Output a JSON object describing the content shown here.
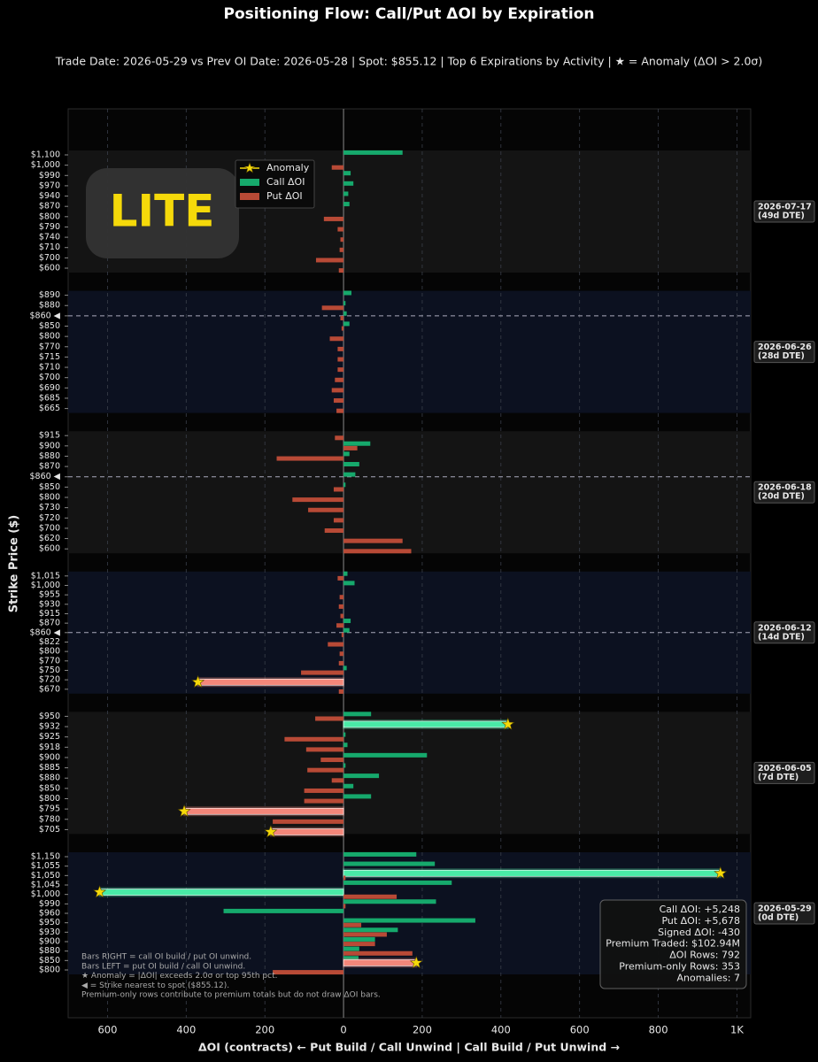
{
  "chart_data": {
    "type": "diverging-bar",
    "title": "Positioning Flow: Call/Put ΔOI by Expiration",
    "subtitle": "Trade Date: 2026-05-29 vs Prev OI Date: 2026-05-28  |  Spot: $855.12  |  Top 6 Expirations by Activity  |  ★ = Anomaly (ΔOI > 2.0σ)",
    "ticker": "LITE",
    "xlabel": "ΔOI (contracts)  ← Put Build / Call Unwind  |  Call Build / Put Unwind →",
    "ylabel": "Strike Price ($)",
    "xlim": [
      -700,
      1035
    ],
    "xticks": [
      {
        "value": -600,
        "label": "600"
      },
      {
        "value": -400,
        "label": "400"
      },
      {
        "value": -200,
        "label": "200"
      },
      0,
      200,
      400,
      600,
      800,
      {
        "value": 1000,
        "label": "1K"
      }
    ],
    "grid": true,
    "legend": {
      "position": "upper left",
      "anomaly_label": "Anomaly",
      "anomaly_color": "#f5d90a"
    },
    "series": [
      {
        "name": "Call ΔOI",
        "color": "#16a96c",
        "anomaly_color": "#49eaa6"
      },
      {
        "name": "Put ΔOI",
        "color": "#b84a36",
        "anomaly_color": "#f3877a"
      }
    ],
    "groups": [
      {
        "expiration": "2026-07-17",
        "dte": "(49d DTE)",
        "spot_index": null,
        "strikes": [
          "$1,100",
          "$1,000",
          "$990",
          "$970",
          "$940",
          "$870",
          "$800",
          "$790",
          "$740",
          "$710",
          "$700",
          "$600"
        ],
        "call": [
          150,
          null,
          18,
          25,
          12,
          15,
          null,
          null,
          null,
          null,
          null,
          null
        ],
        "put": [
          null,
          -30,
          null,
          null,
          null,
          null,
          -50,
          -15,
          -8,
          -10,
          -70,
          -12
        ],
        "anomalies": []
      },
      {
        "expiration": "2026-06-26",
        "dte": "(28d DTE)",
        "spot_index": 2,
        "strikes": [
          "$890",
          "$880",
          "$860 ◀",
          "$850",
          "$800",
          "$770",
          "$715",
          "$710",
          "$700",
          "$690",
          "$685",
          "$665"
        ],
        "call": [
          20,
          5,
          8,
          15,
          null,
          null,
          null,
          null,
          null,
          null,
          null,
          null
        ],
        "put": [
          null,
          -55,
          -8,
          -5,
          -35,
          -15,
          -15,
          -15,
          -22,
          -30,
          -25,
          -18
        ],
        "anomalies": []
      },
      {
        "expiration": "2026-06-18",
        "dte": "(20d DTE)",
        "spot_index": 4,
        "strikes": [
          "$915",
          "$900",
          "$880",
          "$870",
          "$860 ◀",
          "$850",
          "$800",
          "$730",
          "$720",
          "$700",
          "$620",
          "$600"
        ],
        "call": [
          null,
          68,
          15,
          40,
          30,
          5,
          null,
          null,
          null,
          null,
          null,
          null
        ],
        "put": [
          -22,
          35,
          -170,
          null,
          null,
          -25,
          -130,
          -90,
          -25,
          -48,
          150,
          172
        ],
        "anomalies": []
      },
      {
        "expiration": "2026-06-12",
        "dte": "(14d DTE)",
        "spot_index": 6,
        "strikes": [
          "$1,015",
          "$1,000",
          "$955",
          "$930",
          "$915",
          "$870",
          "$860 ◀",
          "$822",
          "$800",
          "$770",
          "$750",
          "$720",
          "$670"
        ],
        "call": [
          10,
          28,
          null,
          null,
          null,
          18,
          15,
          null,
          null,
          null,
          8,
          null,
          null
        ],
        "put": [
          -15,
          null,
          -10,
          -12,
          -8,
          -18,
          -5,
          -40,
          -10,
          -12,
          -108,
          -370,
          -12
        ],
        "anomalies": [
          {
            "series": "put",
            "index": 11
          }
        ]
      },
      {
        "expiration": "2026-06-05",
        "dte": "(7d DTE)",
        "spot_index": null,
        "strikes": [
          "$950",
          "$932",
          "$925",
          "$918",
          "$900",
          "$885",
          "$880",
          "$850",
          "$800",
          "$795",
          "$780",
          "$705"
        ],
        "call": [
          70,
          418,
          5,
          10,
          212,
          5,
          90,
          25,
          70,
          null,
          null,
          null
        ],
        "put": [
          -72,
          null,
          -150,
          -95,
          -58,
          -92,
          -30,
          -100,
          -100,
          -405,
          -180,
          -185
        ],
        "anomalies": [
          {
            "series": "call",
            "index": 1
          },
          {
            "series": "put",
            "index": 9
          },
          {
            "series": "put",
            "index": 11
          }
        ]
      },
      {
        "expiration": "2026-05-29",
        "dte": "(0d DTE)",
        "spot_index": null,
        "strikes": [
          "$1,150",
          "$1,055",
          "$1,050",
          "$1,045",
          "$1,000",
          "$990",
          "$960",
          "$950",
          "$930",
          "$900",
          "$880",
          "$850",
          "$800"
        ],
        "call": [
          185,
          232,
          958,
          275,
          -620,
          235,
          -305,
          335,
          138,
          80,
          40,
          38,
          null
        ],
        "put": [
          null,
          null,
          5,
          null,
          135,
          5,
          null,
          45,
          110,
          80,
          175,
          185,
          -180
        ],
        "anomalies": [
          {
            "series": "call",
            "index": 2
          },
          {
            "series": "call",
            "index": 4
          },
          {
            "series": "put",
            "index": 11
          }
        ]
      }
    ],
    "summary": [
      "Call ΔOI: +5,248",
      "Put ΔOI: +5,678",
      "Signed ΔOI: -430",
      "Premium Traded: $102.94M",
      "ΔOI Rows: 792",
      "Premium-only Rows: 353",
      "Anomalies: 7"
    ],
    "notes": [
      "Bars RIGHT = call OI build / put OI unwind.",
      "Bars LEFT = put OI build / call OI unwind.",
      "★ Anomaly = |ΔOI| exceeds 2.0σ or top 95th pct.",
      "◀ = Strike nearest to spot ($855.12).",
      "Premium-only rows contribute to premium totals but do not draw ΔOI bars."
    ]
  }
}
